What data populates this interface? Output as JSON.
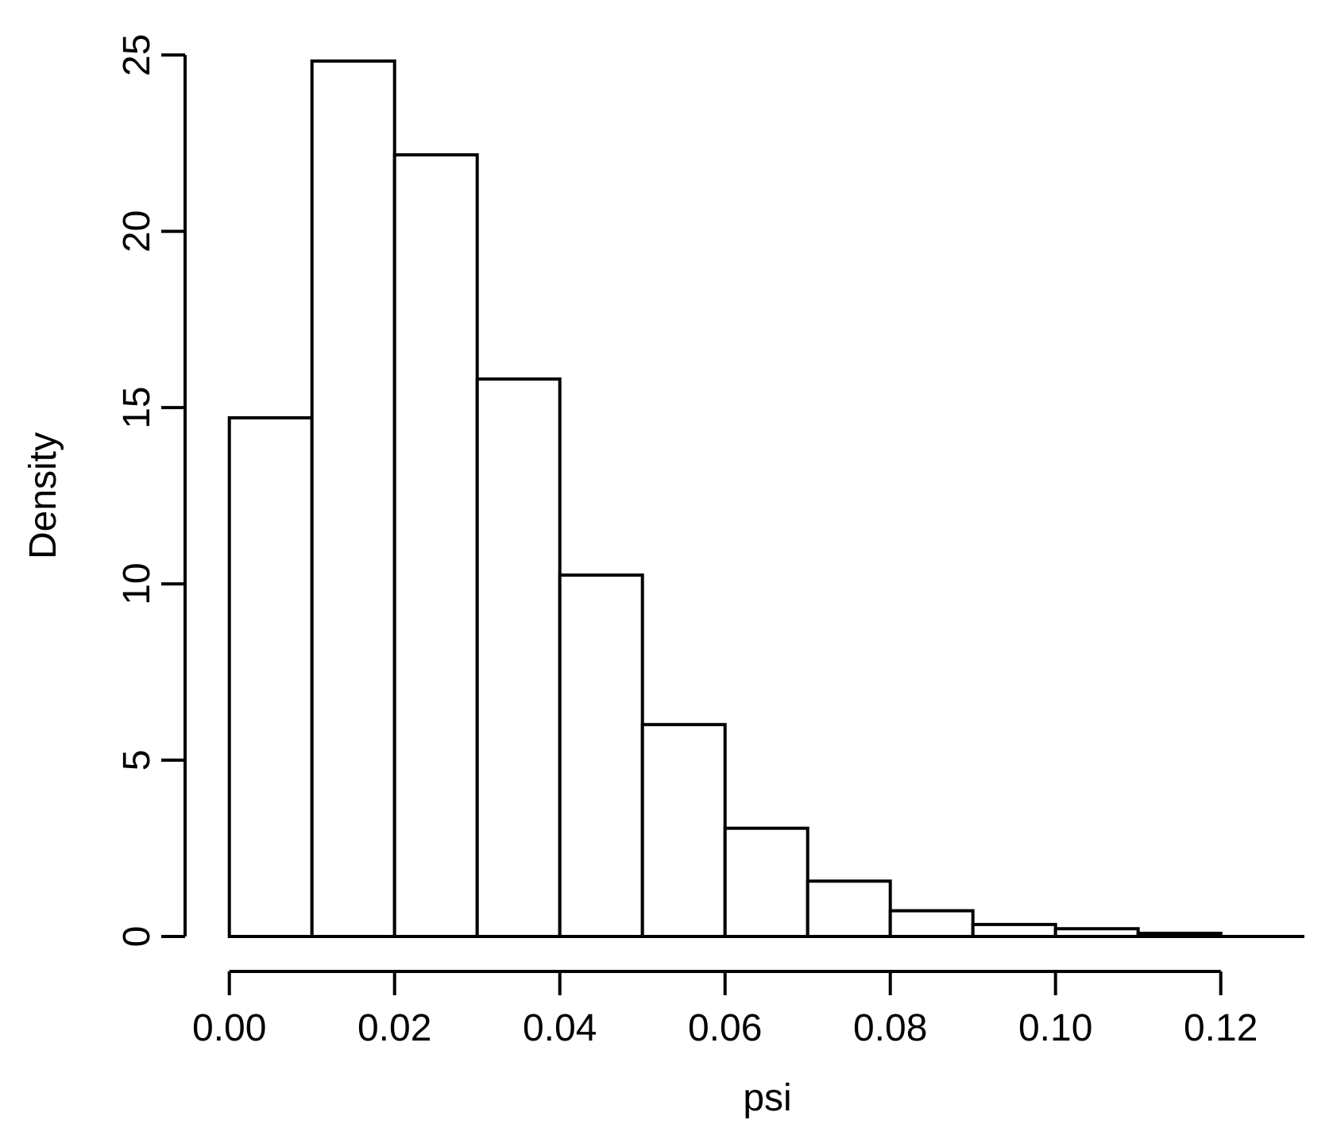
{
  "chart_data": {
    "type": "bar",
    "subtype": "histogram",
    "title": "",
    "xlabel": "psi",
    "ylabel": "Density",
    "bin_edges": [
      0.0,
      0.01,
      0.02,
      0.03,
      0.04,
      0.05,
      0.06,
      0.07,
      0.08,
      0.09,
      0.1,
      0.11,
      0.12
    ],
    "densities": [
      14.71,
      24.83,
      22.17,
      15.81,
      10.25,
      6.01,
      3.07,
      1.57,
      0.73,
      0.34,
      0.22,
      0.09
    ],
    "x_tick_values": [
      0.0,
      0.02,
      0.04,
      0.06,
      0.08,
      0.1,
      0.12
    ],
    "x_tick_labels": [
      "0.00",
      "0.02",
      "0.04",
      "0.06",
      "0.08",
      "0.10",
      "0.12"
    ],
    "y_tick_values": [
      0,
      5,
      10,
      15,
      20,
      25
    ],
    "y_tick_labels": [
      "0",
      "5",
      "10",
      "15",
      "20",
      "25"
    ],
    "xlim": [
      0.0,
      0.13
    ],
    "ylim": [
      0,
      25
    ],
    "bar_fill": "#ffffff",
    "bar_border": "#000000",
    "axis_color": "#000000",
    "background": "#ffffff",
    "grid": "off",
    "legend": "none"
  }
}
